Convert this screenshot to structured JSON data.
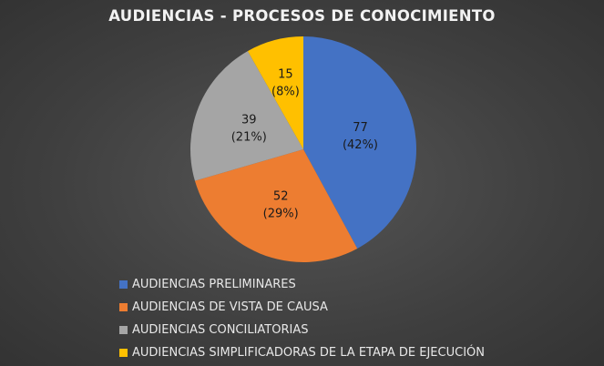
{
  "chart_data": {
    "type": "pie",
    "title": "AUDIENCIAS - PROCESOS DE CONOCIMIENTO",
    "categories": [
      "AUDIENCIAS PRELIMINARES",
      "AUDIENCIAS DE VISTA DE CAUSA",
      "AUDIENCIAS CONCILIATORIAS",
      "AUDIENCIAS SIMPLIFICADORAS DE LA ETAPA DE EJECUCIÓN"
    ],
    "values": [
      77,
      52,
      39,
      15
    ],
    "percent_labels": [
      "(42%)",
      "(29%)",
      "(21%)",
      "(8%)"
    ],
    "colors": [
      "#4472c4",
      "#ed7d31",
      "#a5a5a5",
      "#ffc000"
    ],
    "legend_position": "bottom"
  },
  "legend": {
    "items": [
      {
        "label": "AUDIENCIAS PRELIMINARES",
        "color": "#4472c4"
      },
      {
        "label": "AUDIENCIAS DE VISTA DE CAUSA",
        "color": "#ed7d31"
      },
      {
        "label": "AUDIENCIAS CONCILIATORIAS",
        "color": "#a5a5a5"
      },
      {
        "label": "AUDIENCIAS SIMPLIFICADORAS DE LA ETAPA DE EJECUCIÓN",
        "color": "#ffc000"
      }
    ]
  }
}
